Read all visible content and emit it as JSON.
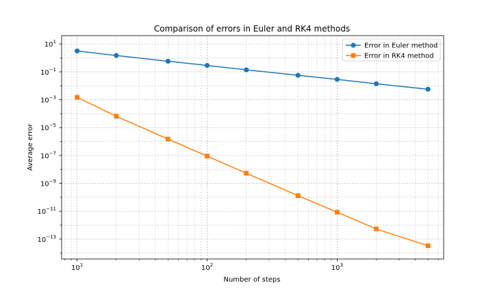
{
  "chart_data": {
    "type": "line",
    "title": "Comparison of errors in Euler and RK4 methods",
    "xlabel": "Number of steps",
    "ylabel": "Average error",
    "xscale": "log",
    "yscale": "log",
    "xlim": [
      7.6,
      6600
    ],
    "ylim": [
      3.7e-15,
      40
    ],
    "x_ticks": [
      {
        "value": 10,
        "base": "10",
        "exp": "1"
      },
      {
        "value": 100,
        "base": "10",
        "exp": "2"
      },
      {
        "value": 1000,
        "base": "10",
        "exp": "3"
      }
    ],
    "y_ticks": [
      {
        "value": 10,
        "base": "10",
        "exp": "1"
      },
      {
        "value": 0.1,
        "base": "10",
        "exp": "−1"
      },
      {
        "value": 0.001,
        "base": "10",
        "exp": "−3"
      },
      {
        "value": 1e-05,
        "base": "10",
        "exp": "−5"
      },
      {
        "value": 1e-07,
        "base": "10",
        "exp": "−7"
      },
      {
        "value": 1e-09,
        "base": "10",
        "exp": "−9"
      },
      {
        "value": 1e-11,
        "base": "10",
        "exp": "−11"
      },
      {
        "value": 1e-13,
        "base": "10",
        "exp": "−13"
      }
    ],
    "grid": true,
    "legend_position": "top-right",
    "x": [
      10,
      20,
      50,
      100,
      200,
      500,
      1000,
      2000,
      5000
    ],
    "series": [
      {
        "name": "Error in Euler method",
        "color": "#1f77b4",
        "marker": "circle",
        "values": [
          3.2,
          1.5,
          0.58,
          0.29,
          0.14,
          0.057,
          0.029,
          0.014,
          0.0057
        ]
      },
      {
        "name": "Error in RK4 method",
        "color": "#ff7f0e",
        "marker": "square",
        "values": [
          0.0015,
          6.5e-05,
          1.5e-06,
          9e-08,
          5.3e-09,
          1.3e-10,
          8.5e-12,
          5.3e-13,
          3.3e-14
        ]
      }
    ]
  }
}
